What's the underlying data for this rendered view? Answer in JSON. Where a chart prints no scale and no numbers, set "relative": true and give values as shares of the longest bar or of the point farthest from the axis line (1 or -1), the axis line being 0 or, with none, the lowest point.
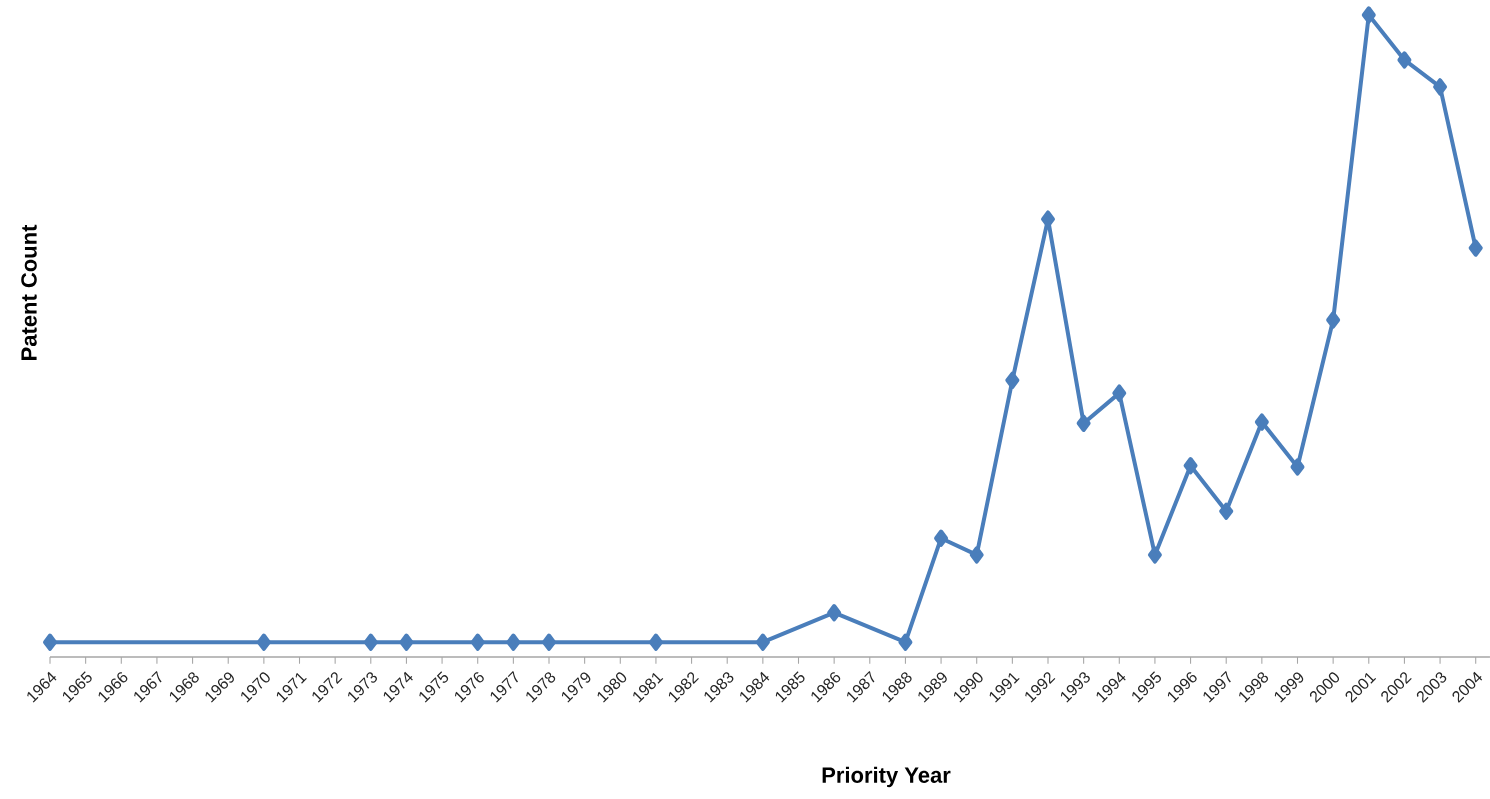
{
  "chart_data": {
    "type": "line",
    "xlabel": "Priority Year",
    "ylabel": "Patent Count",
    "relative": true,
    "marker": "diamond",
    "color": "#4a7ebb",
    "x": [
      1964,
      1970,
      1973,
      1974,
      1976,
      1977,
      1978,
      1981,
      1984,
      1986,
      1988,
      1989,
      1990,
      1991,
      1992,
      1993,
      1994,
      1995,
      1996,
      1997,
      1998,
      1999,
      2000,
      2001,
      2002,
      2003,
      2004
    ],
    "values": [
      0.023,
      0.023,
      0.023,
      0.023,
      0.023,
      0.023,
      0.023,
      0.023,
      0.023,
      0.069,
      0.023,
      0.185,
      0.159,
      0.431,
      0.682,
      0.364,
      0.411,
      0.159,
      0.298,
      0.227,
      0.366,
      0.296,
      0.525,
      1,
      0.93,
      0.888,
      0.637
    ],
    "xlim": [
      1964,
      2004.4
    ],
    "xticks": [
      1964,
      1965,
      1966,
      1967,
      1968,
      1969,
      1970,
      1971,
      1972,
      1973,
      1974,
      1975,
      1976,
      1977,
      1978,
      1979,
      1980,
      1981,
      1982,
      1983,
      1984,
      1985,
      1986,
      1987,
      1988,
      1989,
      1990,
      1991,
      1992,
      1993,
      1994,
      1995,
      1996,
      1997,
      1998,
      1999,
      2000,
      2001,
      2002,
      2003,
      2004
    ]
  }
}
